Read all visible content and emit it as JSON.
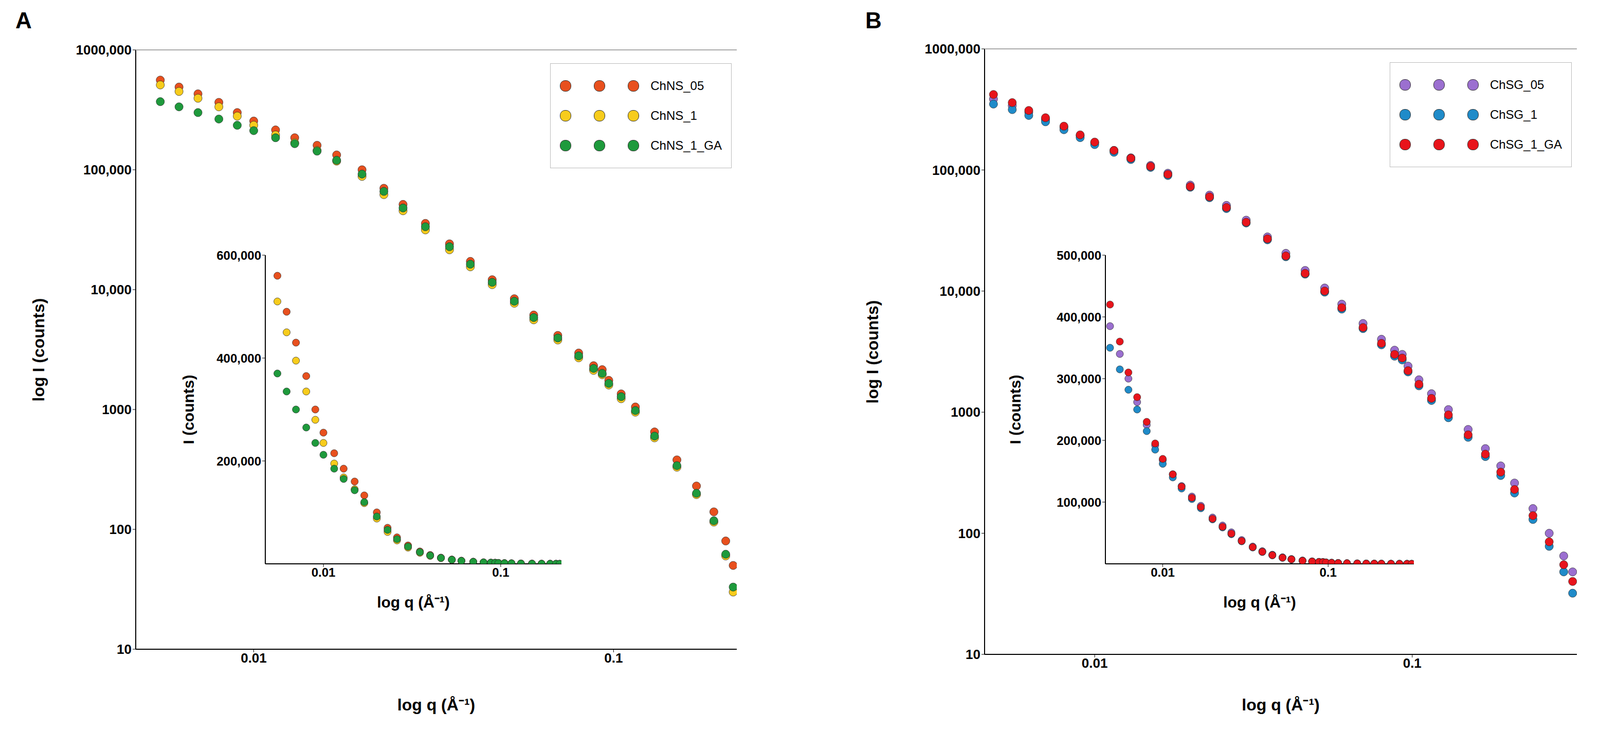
{
  "chart_data": [
    {
      "type": "scatter",
      "title": "A",
      "xlabel": "log q (Å⁻¹)",
      "ylabel": "log I (counts)",
      "log": true,
      "legend": "upper right",
      "marker": "circle",
      "xlim": [
        0.0047,
        0.22
      ],
      "xticks": [
        0.01,
        0.1
      ],
      "ylim": [
        10,
        1000000
      ],
      "yticks": [
        10,
        100,
        1000,
        {
          "value": 10000,
          "label": "10,000"
        },
        {
          "value": 100000,
          "label": "100,000"
        },
        {
          "value": 1000000,
          "label": "1000,000"
        }
      ],
      "x": [
        0.0055,
        0.0062,
        0.007,
        0.008,
        0.009,
        0.01,
        0.0115,
        0.013,
        0.015,
        0.017,
        0.02,
        0.023,
        0.026,
        0.03,
        0.035,
        0.04,
        0.046,
        0.053,
        0.06,
        0.07,
        0.08,
        0.088,
        0.093,
        0.097,
        0.105,
        0.115,
        0.13,
        0.15,
        0.17,
        0.19,
        0.205,
        0.215
      ],
      "series": [
        {
          "name": "ChNS_05",
          "color": "#e8501e",
          "values": [
            560000,
            490000,
            430000,
            365000,
            300000,
            255000,
            215000,
            185000,
            160000,
            133000,
            100000,
            70100,
            51400,
            35700,
            24100,
            17200,
            12100,
            8400,
            6140,
            4150,
            2960,
            2320,
            2150,
            1750,
            1350,
            1050,
            650,
            380,
            230,
            140,
            80,
            50
          ]
        },
        {
          "name": "ChNS_1",
          "color": "#f7cc1c",
          "values": [
            510000,
            450000,
            395000,
            335000,
            280000,
            235000,
            195000,
            168000,
            145000,
            118000,
            88000,
            62000,
            45500,
            31500,
            21500,
            15500,
            11000,
            7700,
            5600,
            3800,
            2700,
            2120,
            1950,
            1600,
            1230,
            950,
            580,
            330,
            195,
            115,
            60,
            30
          ]
        },
        {
          "name": "ChNS_1_GA",
          "color": "#1e9a3c",
          "values": [
            370000,
            335000,
            300000,
            265000,
            235000,
            212000,
            185000,
            165000,
            143000,
            120000,
            92000,
            66000,
            48000,
            33500,
            22800,
            16300,
            11500,
            8000,
            5850,
            3950,
            2800,
            2200,
            2000,
            1650,
            1280,
            980,
            600,
            340,
            200,
            118,
            62,
            33
          ]
        }
      ]
    },
    {
      "type": "scatter",
      "xlabel": "log q (Å⁻¹)",
      "ylabel": "I (counts)",
      "log": "x",
      "marker": "circle",
      "xlim": [
        0.0047,
        0.22
      ],
      "xticks": [
        0.01,
        0.1
      ],
      "ylim": [
        0,
        600000
      ],
      "yticks": [
        {
          "value": 200000,
          "label": "200,000"
        },
        {
          "value": 400000,
          "label": "400,000"
        },
        {
          "value": 600000,
          "label": "600,000"
        }
      ],
      "x": [
        0.0055,
        0.0062,
        0.007,
        0.008,
        0.009,
        0.01,
        0.0115,
        0.013,
        0.015,
        0.017,
        0.02,
        0.023,
        0.026,
        0.03,
        0.035,
        0.04,
        0.046,
        0.053,
        0.06,
        0.07,
        0.08,
        0.088,
        0.093,
        0.097,
        0.105,
        0.115,
        0.13,
        0.15,
        0.17,
        0.19,
        0.205,
        0.215
      ],
      "series": [
        {
          "color": "#e8501e",
          "values": [
            560000,
            490000,
            430000,
            365000,
            300000,
            255000,
            215000,
            185000,
            160000,
            133000,
            100000,
            70100,
            51400,
            35700,
            24100,
            17200,
            12100,
            8400,
            6140,
            4150,
            2960,
            2320,
            2150,
            1750,
            1350,
            1050,
            650,
            380,
            230,
            140,
            80,
            50
          ]
        },
        {
          "color": "#f7cc1c",
          "values": [
            510000,
            450000,
            395000,
            335000,
            280000,
            235000,
            195000,
            168000,
            145000,
            118000,
            88000,
            62000,
            45500,
            31500,
            21500,
            15500,
            11000,
            7700,
            5600,
            3800,
            2700,
            2120,
            1950,
            1600,
            1230,
            950,
            580,
            330,
            195,
            115,
            60,
            30
          ]
        },
        {
          "color": "#1e9a3c",
          "values": [
            370000,
            335000,
            300000,
            265000,
            235000,
            212000,
            185000,
            165000,
            143000,
            120000,
            92000,
            66000,
            48000,
            33500,
            22800,
            16300,
            11500,
            8000,
            5850,
            3950,
            2800,
            2200,
            2000,
            1650,
            1280,
            980,
            600,
            340,
            200,
            118,
            62,
            33
          ]
        }
      ]
    },
    {
      "type": "scatter",
      "title": "B",
      "xlabel": "log q (Å⁻¹)",
      "ylabel": "log I (counts)",
      "log": true,
      "legend": "upper right",
      "marker": "circle",
      "xlim": [
        0.0045,
        0.33
      ],
      "xticks": [
        0.01,
        0.1
      ],
      "ylim": [
        10,
        1000000
      ],
      "yticks": [
        10,
        100,
        1000,
        {
          "value": 10000,
          "label": "10,000"
        },
        {
          "value": 100000,
          "label": "100,000"
        },
        {
          "value": 1000000,
          "label": "1000,000"
        }
      ],
      "x": [
        0.0048,
        0.0055,
        0.0062,
        0.007,
        0.008,
        0.009,
        0.01,
        0.0115,
        0.013,
        0.015,
        0.017,
        0.02,
        0.023,
        0.026,
        0.03,
        0.035,
        0.04,
        0.046,
        0.053,
        0.06,
        0.07,
        0.08,
        0.088,
        0.093,
        0.097,
        0.105,
        0.115,
        0.13,
        0.15,
        0.17,
        0.19,
        0.21,
        0.24,
        0.27,
        0.3,
        0.32
      ],
      "series": [
        {
          "name": "ChSG_05",
          "color": "#9b6fd0",
          "values": [
            385000,
            340000,
            300000,
            262000,
            225000,
            192000,
            168000,
            145000,
            126000,
            109000,
            94000,
            75000,
            62000,
            51000,
            38500,
            28000,
            20500,
            14800,
            10600,
            7800,
            5400,
            4000,
            3250,
            3000,
            2400,
            1850,
            1420,
            1050,
            720,
            500,
            360,
            260,
            160,
            100,
            65,
            48
          ]
        },
        {
          "name": "ChSG_1",
          "color": "#1f8bc9",
          "values": [
            350000,
            315000,
            282000,
            250000,
            215000,
            185000,
            162000,
            140000,
            122000,
            105000,
            90000,
            72000,
            59000,
            48000,
            36500,
            26500,
            19200,
            13800,
            9800,
            7100,
            4900,
            3600,
            2900,
            2700,
            2150,
            1650,
            1250,
            900,
            620,
            430,
            300,
            215,
            130,
            78,
            48,
            32
          ]
        },
        {
          "name": "ChSG_1_GA",
          "color": "#e8141b",
          "values": [
            420000,
            360000,
            310000,
            270000,
            230000,
            195000,
            170000,
            145000,
            125000,
            107000,
            92000,
            73000,
            60000,
            49000,
            37000,
            27000,
            19500,
            14000,
            10000,
            7300,
            5000,
            3700,
            3000,
            2800,
            2200,
            1700,
            1300,
            950,
            650,
            450,
            320,
            230,
            140,
            85,
            55,
            40
          ]
        }
      ]
    },
    {
      "type": "scatter",
      "xlabel": "log q (Å⁻¹)",
      "ylabel": "I (counts)",
      "log": "x",
      "marker": "circle",
      "xlim": [
        0.0045,
        0.33
      ],
      "xticks": [
        0.01,
        0.1
      ],
      "ylim": [
        0,
        500000
      ],
      "yticks": [
        {
          "value": 100000,
          "label": "100,000"
        },
        {
          "value": 200000,
          "label": "200,000"
        },
        {
          "value": 300000,
          "label": "300,000"
        },
        {
          "value": 400000,
          "label": "400,000"
        },
        {
          "value": 500000,
          "label": "500,000"
        }
      ],
      "x": [
        0.0048,
        0.0055,
        0.0062,
        0.007,
        0.008,
        0.009,
        0.01,
        0.0115,
        0.013,
        0.015,
        0.017,
        0.02,
        0.023,
        0.026,
        0.03,
        0.035,
        0.04,
        0.046,
        0.053,
        0.06,
        0.07,
        0.08,
        0.088,
        0.093,
        0.097,
        0.105,
        0.115,
        0.13,
        0.15,
        0.17,
        0.19,
        0.21,
        0.24,
        0.27,
        0.3,
        0.32
      ],
      "series": [
        {
          "color": "#9b6fd0",
          "values": [
            385000,
            340000,
            300000,
            262000,
            225000,
            192000,
            168000,
            145000,
            126000,
            109000,
            94000,
            75000,
            62000,
            51000,
            38500,
            28000,
            20500,
            14800,
            10600,
            7800,
            5400,
            4000,
            3250,
            3000,
            2400,
            1850,
            1420,
            1050,
            720,
            500,
            360,
            260,
            160,
            100,
            65,
            48
          ]
        },
        {
          "color": "#1f8bc9",
          "values": [
            350000,
            315000,
            282000,
            250000,
            215000,
            185000,
            162000,
            140000,
            122000,
            105000,
            90000,
            72000,
            59000,
            48000,
            36500,
            26500,
            19200,
            13800,
            9800,
            7100,
            4900,
            3600,
            2900,
            2700,
            2150,
            1650,
            1250,
            900,
            620,
            430,
            300,
            215,
            130,
            78,
            48,
            32
          ]
        },
        {
          "color": "#e8141b",
          "values": [
            420000,
            360000,
            310000,
            270000,
            230000,
            195000,
            170000,
            145000,
            125000,
            107000,
            92000,
            73000,
            60000,
            49000,
            37000,
            27000,
            19500,
            14000,
            10000,
            7300,
            5000,
            3700,
            3000,
            2800,
            2200,
            1700,
            1300,
            950,
            650,
            450,
            320,
            230,
            140,
            85,
            55,
            40
          ]
        }
      ]
    }
  ]
}
